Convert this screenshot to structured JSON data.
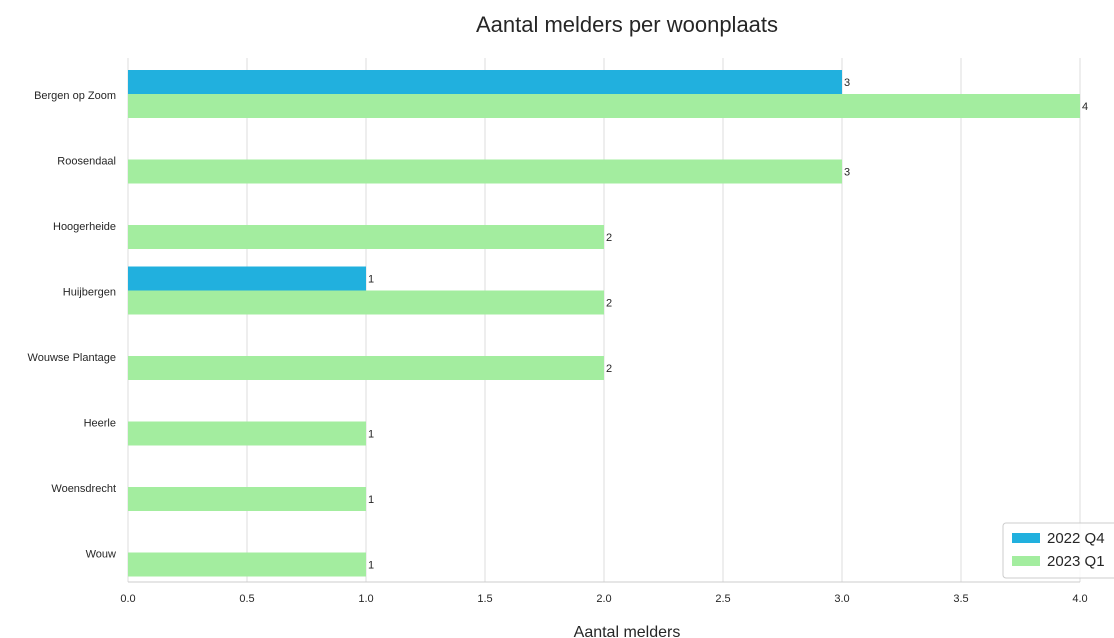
{
  "chart_data": {
    "type": "bar",
    "orientation": "horizontal",
    "title": "Aantal melders per woonplaats",
    "xlabel": "Aantal melders",
    "ylabel": "",
    "xlim": [
      0,
      4.0
    ],
    "xticks": [
      "0.0",
      "0.5",
      "1.0",
      "1.5",
      "2.0",
      "2.5",
      "3.0",
      "3.5",
      "4.0"
    ],
    "grid": "vertical",
    "legend_position": "bottom-right",
    "categories": [
      "Bergen op Zoom",
      "Roosendaal",
      "Hoogerheide",
      "Huijbergen",
      "Wouwse Plantage",
      "Heerle",
      "Woensdrecht",
      "Wouw"
    ],
    "series": [
      {
        "name": "2022 Q4",
        "color": "#21b0de",
        "values": [
          3,
          null,
          null,
          1,
          null,
          null,
          null,
          null
        ],
        "labels": [
          "3",
          "",
          "",
          "1",
          "",
          "",
          "",
          ""
        ]
      },
      {
        "name": "2023 Q1",
        "color": "#a3ed9f",
        "values": [
          4,
          3,
          2,
          2,
          2,
          1,
          1,
          1
        ],
        "labels": [
          "4",
          "3",
          "2",
          "2",
          "2",
          "1",
          "1",
          "1"
        ]
      }
    ]
  }
}
